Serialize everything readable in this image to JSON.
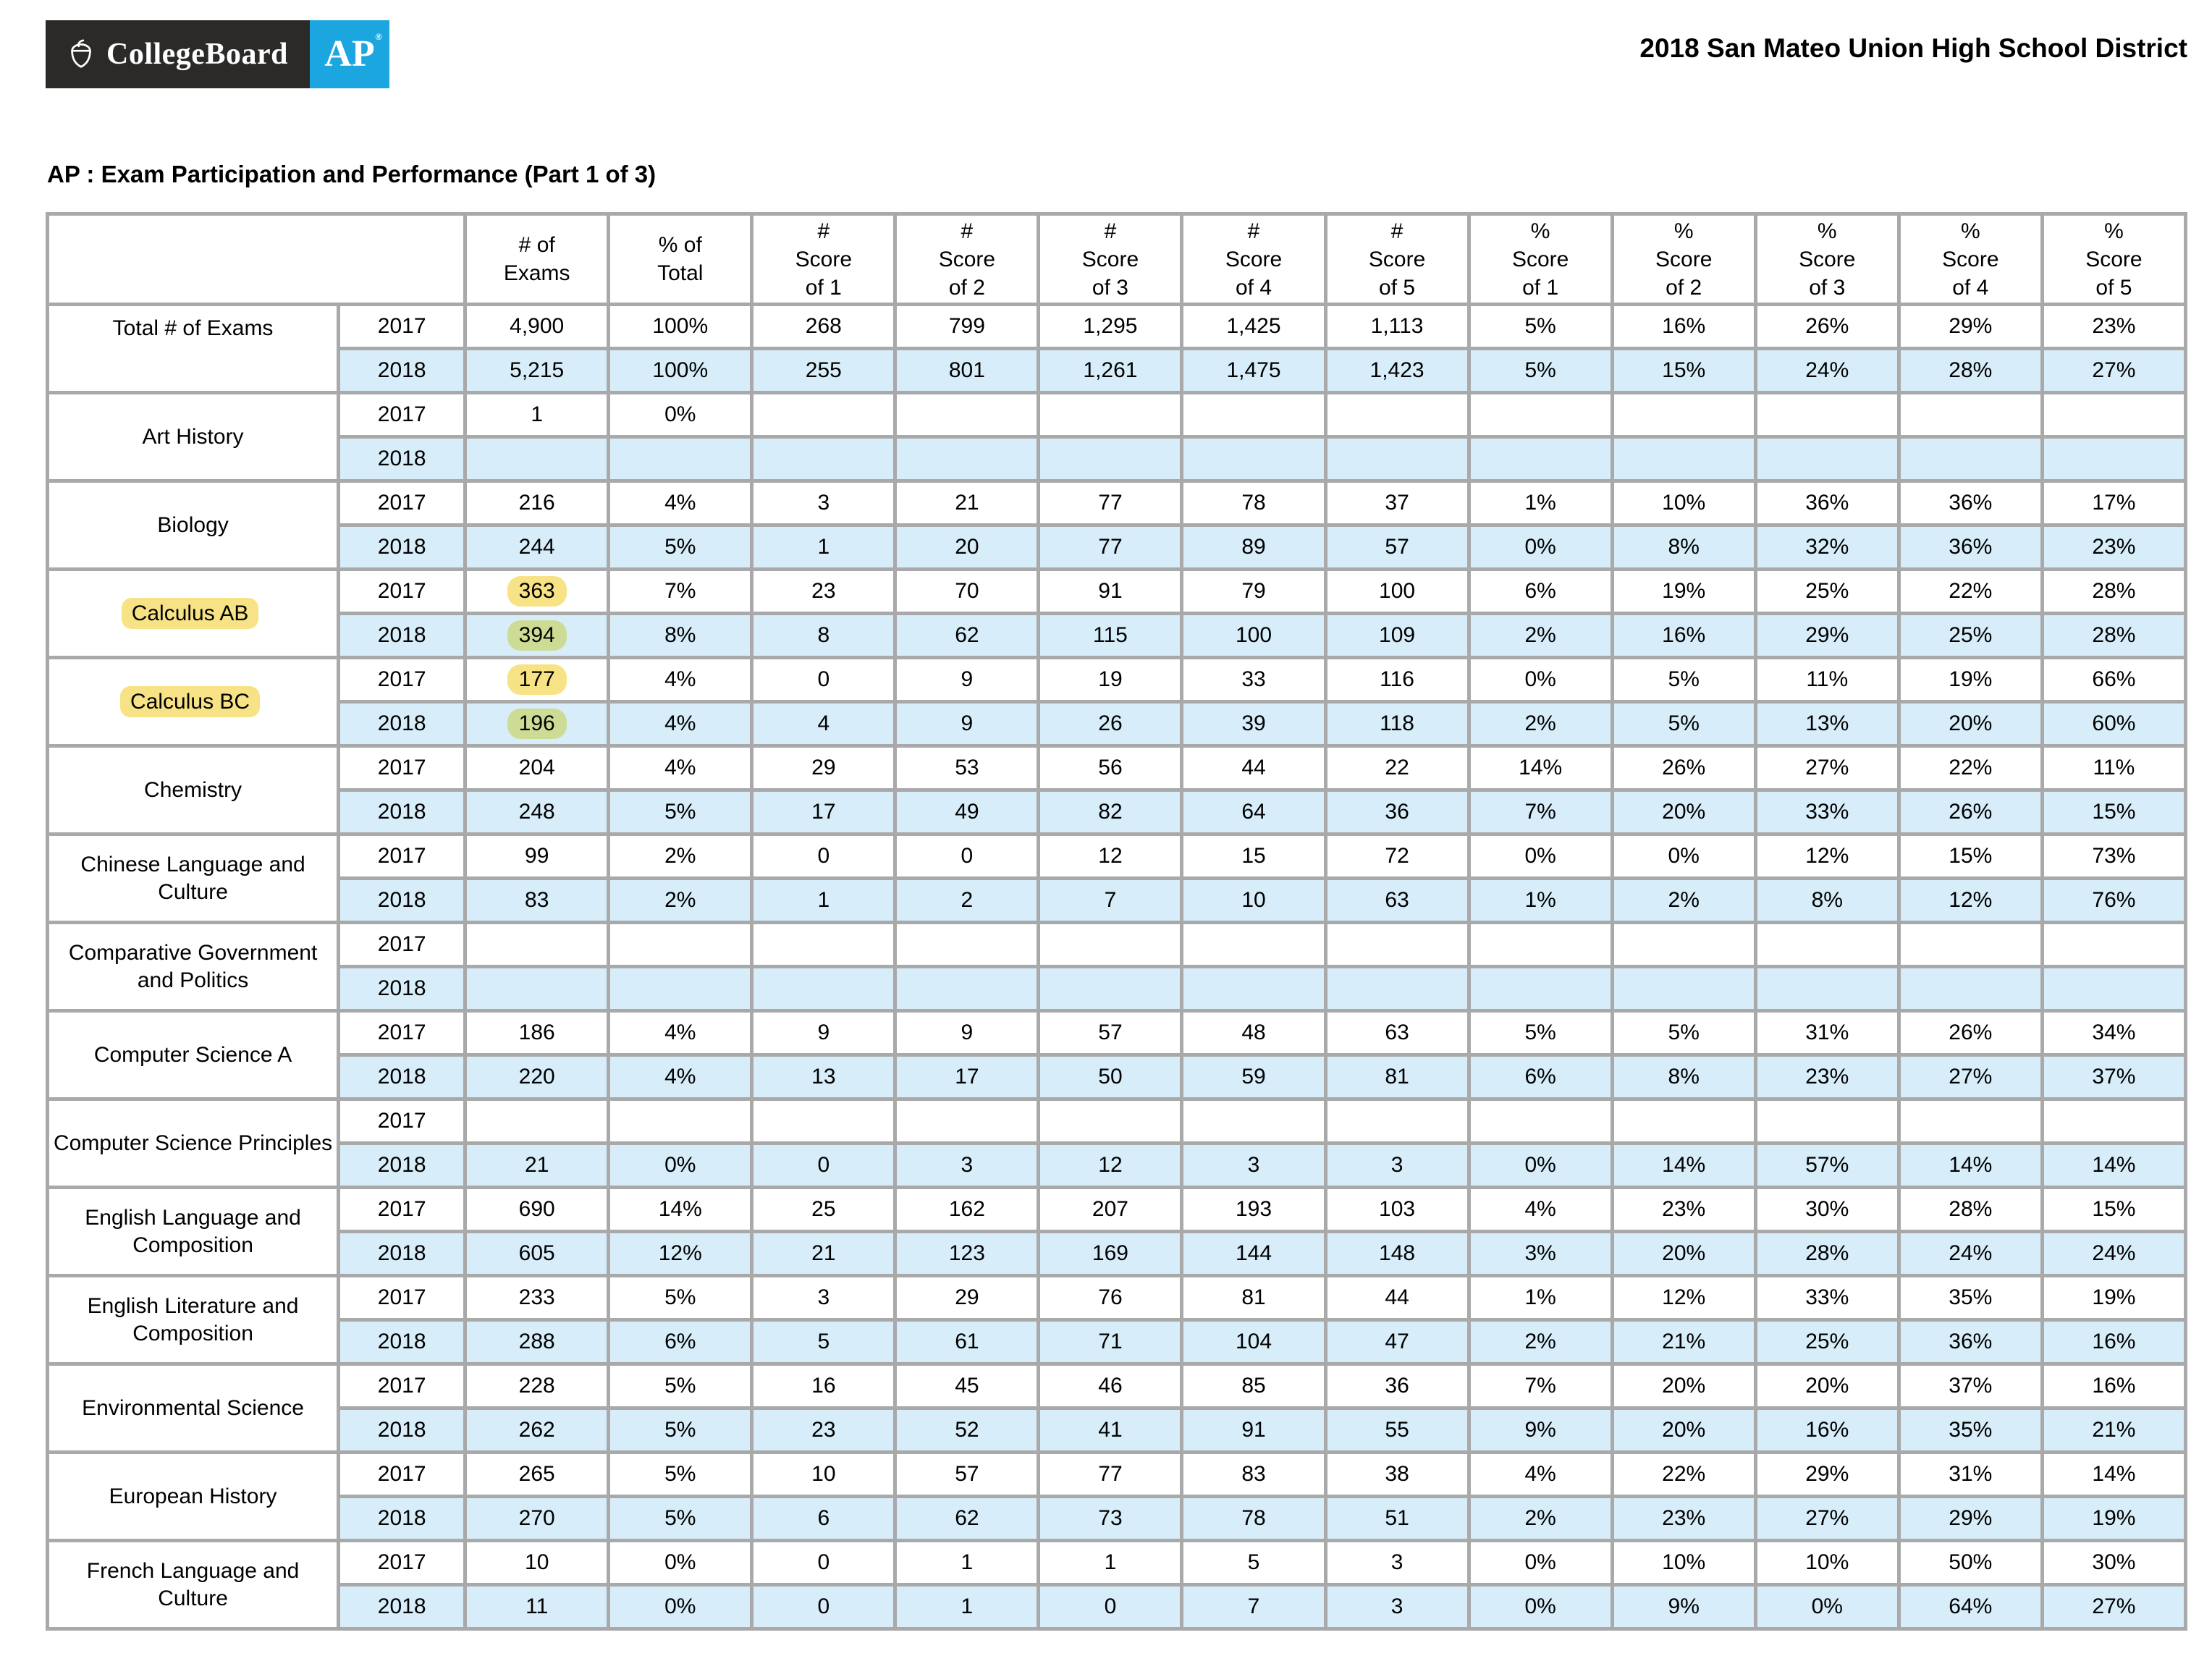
{
  "colors": {
    "logo_dark": "#2b2a28",
    "logo_blue": "#1ba6e0",
    "row_2018_blue": "#d7edf9",
    "highlight_yellow": "#f7e385",
    "highlight_green": "#cddc95",
    "border_gray": "#a9a9a9"
  },
  "logo": {
    "collegeboard": "CollegeBoard",
    "ap": "AP",
    "registered": "®"
  },
  "header": {
    "title": "2018 San Mateo Union High School District"
  },
  "section": {
    "heading": "AP : Exam Participation and Performance (Part 1 of 3)"
  },
  "table": {
    "years": [
      "2017",
      "2018"
    ],
    "columns": [
      "# of\nExams",
      "% of\nTotal",
      "#\nScore\nof 1",
      "#\nScore\nof 2",
      "#\nScore\nof 3",
      "#\nScore\nof 4",
      "#\nScore\nof 5",
      "%\nScore\nof 1",
      "%\nScore\nof 2",
      "%\nScore\nof 3",
      "%\nScore\nof 4",
      "%\nScore\nof 5"
    ],
    "rows": [
      {
        "subject": "Total # of Exams",
        "subject_highlight": false,
        "value_highlight": false,
        "y2017": [
          "4,900",
          "100%",
          "268",
          "799",
          "1,295",
          "1,425",
          "1,113",
          "5%",
          "16%",
          "26%",
          "29%",
          "23%"
        ],
        "y2018": [
          "5,215",
          "100%",
          "255",
          "801",
          "1,261",
          "1,475",
          "1,423",
          "5%",
          "15%",
          "24%",
          "28%",
          "27%"
        ]
      },
      {
        "subject": "Art History",
        "subject_highlight": false,
        "value_highlight": false,
        "y2017": [
          "1",
          "0%",
          "",
          "",
          "",
          "",
          "",
          "",
          "",
          "",
          "",
          ""
        ],
        "y2018": [
          "",
          "",
          "",
          "",
          "",
          "",
          "",
          "",
          "",
          "",
          "",
          ""
        ]
      },
      {
        "subject": "Biology",
        "subject_highlight": false,
        "value_highlight": false,
        "y2017": [
          "216",
          "4%",
          "3",
          "21",
          "77",
          "78",
          "37",
          "1%",
          "10%",
          "36%",
          "36%",
          "17%"
        ],
        "y2018": [
          "244",
          "5%",
          "1",
          "20",
          "77",
          "89",
          "57",
          "0%",
          "8%",
          "32%",
          "36%",
          "23%"
        ]
      },
      {
        "subject": "Calculus AB",
        "subject_highlight": true,
        "value_highlight": true,
        "y2017": [
          "363",
          "7%",
          "23",
          "70",
          "91",
          "79",
          "100",
          "6%",
          "19%",
          "25%",
          "22%",
          "28%"
        ],
        "y2018": [
          "394",
          "8%",
          "8",
          "62",
          "115",
          "100",
          "109",
          "2%",
          "16%",
          "29%",
          "25%",
          "28%"
        ]
      },
      {
        "subject": "Calculus BC",
        "subject_highlight": true,
        "value_highlight": true,
        "y2017": [
          "177",
          "4%",
          "0",
          "9",
          "19",
          "33",
          "116",
          "0%",
          "5%",
          "11%",
          "19%",
          "66%"
        ],
        "y2018": [
          "196",
          "4%",
          "4",
          "9",
          "26",
          "39",
          "118",
          "2%",
          "5%",
          "13%",
          "20%",
          "60%"
        ]
      },
      {
        "subject": "Chemistry",
        "subject_highlight": false,
        "value_highlight": false,
        "y2017": [
          "204",
          "4%",
          "29",
          "53",
          "56",
          "44",
          "22",
          "14%",
          "26%",
          "27%",
          "22%",
          "11%"
        ],
        "y2018": [
          "248",
          "5%",
          "17",
          "49",
          "82",
          "64",
          "36",
          "7%",
          "20%",
          "33%",
          "26%",
          "15%"
        ]
      },
      {
        "subject": "Chinese Language and Culture",
        "subject_highlight": false,
        "value_highlight": false,
        "y2017": [
          "99",
          "2%",
          "0",
          "0",
          "12",
          "15",
          "72",
          "0%",
          "0%",
          "12%",
          "15%",
          "73%"
        ],
        "y2018": [
          "83",
          "2%",
          "1",
          "2",
          "7",
          "10",
          "63",
          "1%",
          "2%",
          "8%",
          "12%",
          "76%"
        ]
      },
      {
        "subject": "Comparative Government and Politics",
        "subject_highlight": false,
        "value_highlight": false,
        "y2017": [
          "",
          "",
          "",
          "",
          "",
          "",
          "",
          "",
          "",
          "",
          "",
          ""
        ],
        "y2018": [
          "",
          "",
          "",
          "",
          "",
          "",
          "",
          "",
          "",
          "",
          "",
          ""
        ]
      },
      {
        "subject": "Computer Science A",
        "subject_highlight": false,
        "value_highlight": false,
        "y2017": [
          "186",
          "4%",
          "9",
          "9",
          "57",
          "48",
          "63",
          "5%",
          "5%",
          "31%",
          "26%",
          "34%"
        ],
        "y2018": [
          "220",
          "4%",
          "13",
          "17",
          "50",
          "59",
          "81",
          "6%",
          "8%",
          "23%",
          "27%",
          "37%"
        ]
      },
      {
        "subject": "Computer Science Principles",
        "subject_highlight": false,
        "value_highlight": false,
        "y2017": [
          "",
          "",
          "",
          "",
          "",
          "",
          "",
          "",
          "",
          "",
          "",
          ""
        ],
        "y2018": [
          "21",
          "0%",
          "0",
          "3",
          "12",
          "3",
          "3",
          "0%",
          "14%",
          "57%",
          "14%",
          "14%"
        ]
      },
      {
        "subject": "English Language and Composition",
        "subject_highlight": false,
        "value_highlight": false,
        "y2017": [
          "690",
          "14%",
          "25",
          "162",
          "207",
          "193",
          "103",
          "4%",
          "23%",
          "30%",
          "28%",
          "15%"
        ],
        "y2018": [
          "605",
          "12%",
          "21",
          "123",
          "169",
          "144",
          "148",
          "3%",
          "20%",
          "28%",
          "24%",
          "24%"
        ]
      },
      {
        "subject": "English Literature and Composition",
        "subject_highlight": false,
        "value_highlight": false,
        "y2017": [
          "233",
          "5%",
          "3",
          "29",
          "76",
          "81",
          "44",
          "1%",
          "12%",
          "33%",
          "35%",
          "19%"
        ],
        "y2018": [
          "288",
          "6%",
          "5",
          "61",
          "71",
          "104",
          "47",
          "2%",
          "21%",
          "25%",
          "36%",
          "16%"
        ]
      },
      {
        "subject": "Environmental Science",
        "subject_highlight": false,
        "value_highlight": false,
        "y2017": [
          "228",
          "5%",
          "16",
          "45",
          "46",
          "85",
          "36",
          "7%",
          "20%",
          "20%",
          "37%",
          "16%"
        ],
        "y2018": [
          "262",
          "5%",
          "23",
          "52",
          "41",
          "91",
          "55",
          "9%",
          "20%",
          "16%",
          "35%",
          "21%"
        ]
      },
      {
        "subject": "European History",
        "subject_highlight": false,
        "value_highlight": false,
        "y2017": [
          "265",
          "5%",
          "10",
          "57",
          "77",
          "83",
          "38",
          "4%",
          "22%",
          "29%",
          "31%",
          "14%"
        ],
        "y2018": [
          "270",
          "5%",
          "6",
          "62",
          "73",
          "78",
          "51",
          "2%",
          "23%",
          "27%",
          "29%",
          "19%"
        ]
      },
      {
        "subject": "French Language and Culture",
        "subject_highlight": false,
        "value_highlight": false,
        "y2017": [
          "10",
          "0%",
          "0",
          "1",
          "1",
          "5",
          "3",
          "0%",
          "10%",
          "10%",
          "50%",
          "30%"
        ],
        "y2018": [
          "11",
          "0%",
          "0",
          "1",
          "0",
          "7",
          "3",
          "0%",
          "9%",
          "0%",
          "64%",
          "27%"
        ]
      }
    ]
  }
}
